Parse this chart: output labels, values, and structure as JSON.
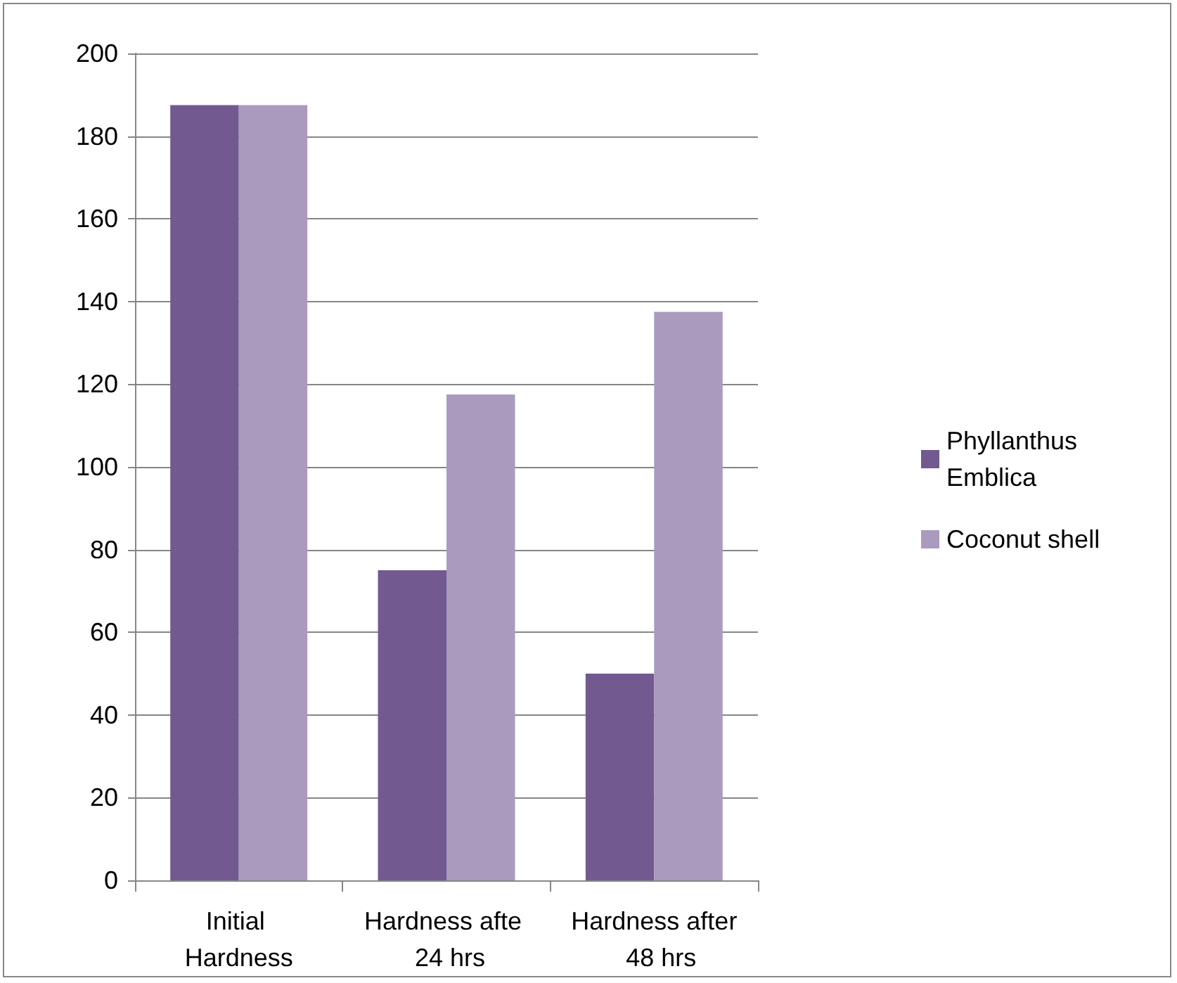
{
  "chart_data": {
    "type": "bar",
    "categories": [
      "Initial Hardness",
      "Hardness afte  24 hrs",
      "Hardness after  48 hrs"
    ],
    "series": [
      {
        "name": "Phyllanthus Emblica",
        "color": "#72598f",
        "values": [
          187.5,
          75,
          50
        ]
      },
      {
        "name": "Coconut shell",
        "color": "#a99abe",
        "values": [
          187.5,
          117.5,
          137.5
        ]
      }
    ],
    "ylim": [
      0,
      200
    ],
    "yticks": [
      0,
      20,
      40,
      60,
      80,
      100,
      120,
      140,
      160,
      180,
      200
    ],
    "grid": "y",
    "legend": "right"
  }
}
